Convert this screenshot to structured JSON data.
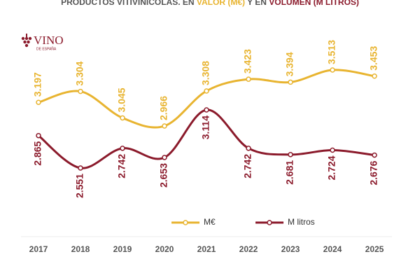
{
  "chart_data": {
    "type": "line",
    "title_parts": [
      {
        "text": "PRODUCTOS VITIVINÍCOLAS. EN ",
        "color": "#555555"
      },
      {
        "text": "VALOR (M€)",
        "color": "#e8b430"
      },
      {
        "text": " Y EN ",
        "color": "#555555"
      },
      {
        "text": "VOLUMEN (M LITROS)",
        "color": "#8b1a2b"
      }
    ],
    "logo": {
      "name": "VINO",
      "subtitle": "DE ESPAÑA"
    },
    "categories": [
      "2017",
      "2018",
      "2019",
      "2020",
      "2021",
      "2022",
      "2023",
      "2024",
      "2025"
    ],
    "series": [
      {
        "name": "M€",
        "color": "#e8b430",
        "values": [
          3197,
          3304,
          3045,
          2966,
          3308,
          3423,
          3394,
          3513,
          3453
        ],
        "value_labels": [
          "3.197",
          "3.304",
          "3.045",
          "2.966",
          "3.308",
          "3.423",
          "3.394",
          "3.513",
          "3.453"
        ]
      },
      {
        "name": "M litros",
        "color": "#8b1a2b",
        "values": [
          2865,
          2551,
          2742,
          2653,
          3114,
          2742,
          2681,
          2724,
          2676
        ],
        "value_labels": [
          "2.865",
          "2.551",
          "2.742",
          "2.653",
          "3.114",
          "2.742",
          "2.681",
          "2.724",
          "2.676"
        ]
      }
    ],
    "legend": "bottom",
    "smooth": true
  }
}
